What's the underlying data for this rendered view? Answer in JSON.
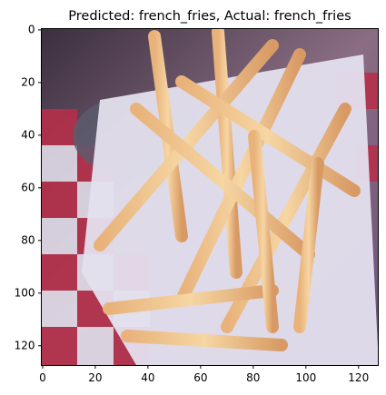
{
  "chart_data": {
    "type": "image",
    "title": "Predicted: french_fries, Actual: french_fries",
    "xlim": [
      -0.5,
      127.5
    ],
    "ylim": [
      127.5,
      -0.5
    ],
    "xticks": [
      0,
      20,
      40,
      60,
      80,
      100,
      120
    ],
    "yticks": [
      0,
      20,
      40,
      60,
      80,
      100,
      120
    ]
  }
}
